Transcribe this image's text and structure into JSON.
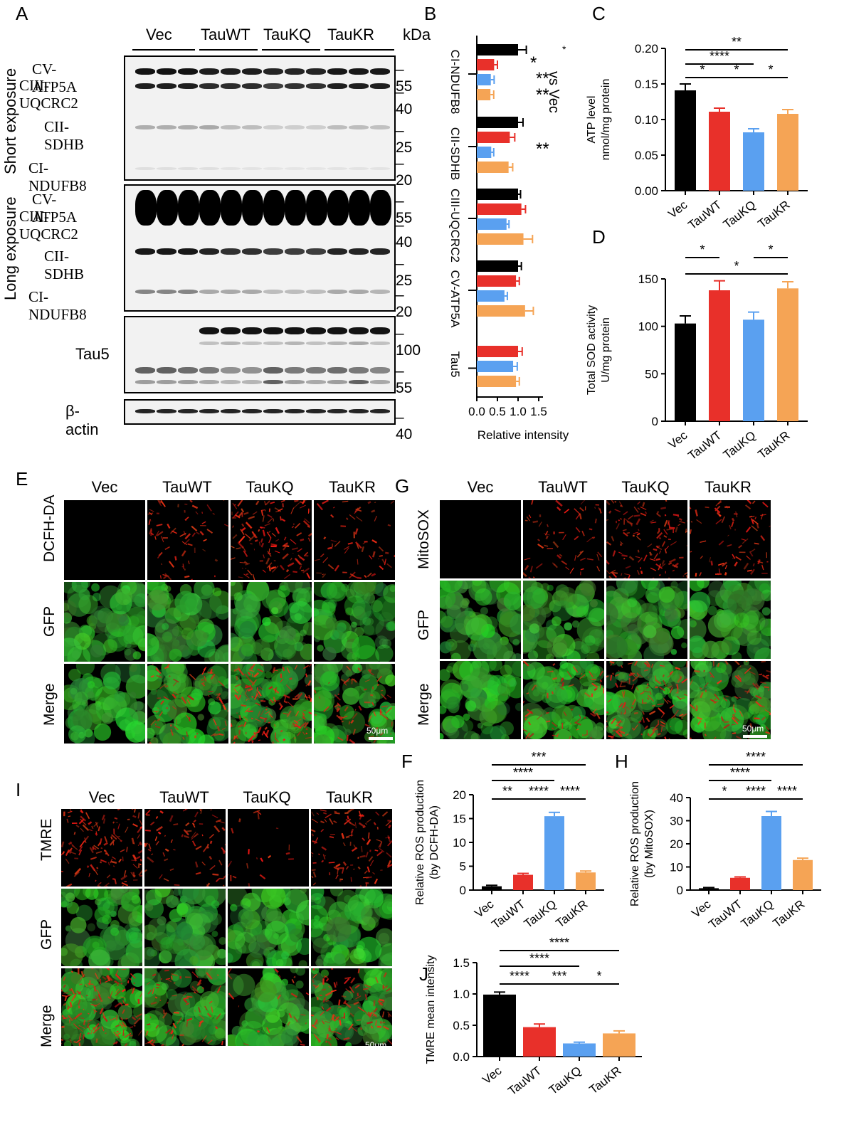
{
  "panel_letters": [
    "A",
    "B",
    "C",
    "D",
    "E",
    "F",
    "G",
    "H",
    "I",
    "J"
  ],
  "groups": [
    "Vec",
    "TauWT",
    "TauKQ",
    "TauKR"
  ],
  "colors": {
    "Vec": "#000000",
    "TauWT": "#e8302a",
    "TauKQ": "#5aa0f0",
    "TauKR": "#f5a455"
  },
  "western": {
    "kda_label": "kDa",
    "short_exposure": "Short exposure",
    "long_exposure": "Long exposure",
    "short_labels": [
      "CV-ATP5A",
      "CIII-UQCRC2",
      "CII-SDHB",
      "CI-NDUFB8"
    ],
    "long_labels": [
      "CV-ATP5A",
      "CIII-UQCRC2",
      "CII-SDHB",
      "CI-NDUFB8"
    ],
    "tau_label": "Tau5",
    "actin_label": "β-actin",
    "mw_short": [
      "55",
      "40",
      "25",
      "20"
    ],
    "mw_long": [
      "55",
      "40",
      "25",
      "20"
    ],
    "mw_tau": [
      "100",
      "55"
    ],
    "mw_actin": [
      "40"
    ]
  },
  "panel_b": {
    "xlabel": "Relative intensity",
    "vs_label": "vs Vec",
    "group_labels": [
      "CI-NDUFB8",
      "CII-SDHB",
      "CIII-UQCRC2",
      "CV-ATP5A",
      "Tau5"
    ],
    "stars": [
      "*",
      "*",
      "**",
      "**",
      "**"
    ]
  },
  "panel_c": {
    "ylabel1": "ATP level",
    "ylabel2": "nmol/mg protein",
    "sig": [
      "**",
      "****",
      "*",
      "*",
      "*"
    ]
  },
  "panel_d": {
    "ylabel1": "Total SOD activity",
    "ylabel2": "U/mg protein",
    "sig": [
      "*",
      "*",
      "*"
    ]
  },
  "panel_f": {
    "ylabel1": "Relative ROS production",
    "ylabel2": "(by DCFH-DA)",
    "sig": [
      "***",
      "****",
      "**",
      "****",
      "****"
    ]
  },
  "panel_h": {
    "ylabel1": "Relative ROS production",
    "ylabel2": "(by MitoSOX)",
    "sig": [
      "****",
      "****",
      "*",
      "****",
      "****"
    ]
  },
  "panel_j": {
    "ylabel1": "TMRE mean intensity",
    "sig": [
      "****",
      "****",
      "****",
      "***",
      "*"
    ]
  },
  "micrographs": {
    "e_rows": [
      "DCFH-DA",
      "GFP",
      "Merge"
    ],
    "g_rows": [
      "MitoSOX",
      "GFP",
      "Merge"
    ],
    "i_rows": [
      "TMRE",
      "GFP",
      "Merge"
    ],
    "scale": "50μm"
  },
  "chart_data": [
    {
      "panel": "B",
      "type": "bar",
      "orientation": "horizontal",
      "xlabel": "Relative intensity",
      "xlim": [
        0,
        1.5
      ],
      "xticks": [
        "0.0",
        "0.5",
        "1.0",
        "1.5"
      ],
      "categories": [
        "CI-NDUFB8",
        "CII-SDHB",
        "CIII-UQCRC2",
        "CV-ATP5A",
        "Tau5"
      ],
      "series": [
        {
          "name": "Vec",
          "values": [
            1.0,
            1.0,
            1.0,
            1.0,
            null
          ],
          "errors": [
            0.2,
            0.12,
            0.06,
            0.08,
            null
          ]
        },
        {
          "name": "TauWT",
          "values": [
            0.42,
            0.8,
            1.08,
            0.95,
            1.0
          ],
          "errors": [
            0.08,
            0.12,
            0.1,
            0.08,
            0.1
          ]
        },
        {
          "name": "TauKQ",
          "values": [
            0.34,
            0.35,
            0.72,
            0.67,
            0.88
          ],
          "errors": [
            0.08,
            0.06,
            0.06,
            0.07,
            0.1
          ]
        },
        {
          "name": "TauKR",
          "values": [
            0.33,
            0.77,
            1.13,
            1.17,
            0.95
          ],
          "errors": [
            0.08,
            0.1,
            0.22,
            0.2,
            0.08
          ]
        }
      ]
    },
    {
      "panel": "C",
      "type": "bar",
      "ylim": [
        0,
        0.2
      ],
      "yticks": [
        "0.00",
        "0.05",
        "0.10",
        "0.15",
        "0.20"
      ],
      "ylabel": "ATP level nmol/mg protein",
      "categories": [
        "Vec",
        "TauWT",
        "TauKQ",
        "TauKR"
      ],
      "values": [
        0.141,
        0.111,
        0.082,
        0.108
      ],
      "errors": [
        0.009,
        0.005,
        0.005,
        0.006
      ]
    },
    {
      "panel": "D",
      "type": "bar",
      "ylim": [
        0,
        150
      ],
      "yticks": [
        "0",
        "50",
        "100",
        "150"
      ],
      "ylabel": "Total SOD activity U/mg protein",
      "categories": [
        "Vec",
        "TauWT",
        "TauKQ",
        "TauKR"
      ],
      "values": [
        103,
        138,
        107,
        140
      ],
      "errors": [
        8,
        10,
        8,
        7
      ]
    },
    {
      "panel": "F",
      "type": "bar",
      "ylim": [
        0,
        20
      ],
      "yticks": [
        "0",
        "5",
        "10",
        "15",
        "20"
      ],
      "ylabel": "Relative ROS production (by DCFH-DA)",
      "categories": [
        "Vec",
        "TauWT",
        "TauKQ",
        "TauKR"
      ],
      "values": [
        0.8,
        3.2,
        15.5,
        3.7
      ],
      "errors": [
        0.2,
        0.3,
        0.8,
        0.3
      ]
    },
    {
      "panel": "H",
      "type": "bar",
      "ylim": [
        0,
        40
      ],
      "yticks": [
        "0",
        "10",
        "20",
        "30",
        "40"
      ],
      "ylabel": "Relative ROS production (by MitoSOX)",
      "categories": [
        "Vec",
        "TauWT",
        "TauKQ",
        "TauKR"
      ],
      "values": [
        0.8,
        5.3,
        32.0,
        13.0
      ],
      "errors": [
        0.3,
        0.4,
        2.0,
        0.8
      ]
    },
    {
      "panel": "J",
      "type": "bar",
      "ylim": [
        0,
        1.5
      ],
      "yticks": [
        "0.0",
        "0.5",
        "1.0",
        "1.5"
      ],
      "ylabel": "TMRE mean intensity",
      "categories": [
        "Vec",
        "TauWT",
        "TauKQ",
        "TauKR"
      ],
      "values": [
        0.99,
        0.47,
        0.21,
        0.37
      ],
      "errors": [
        0.04,
        0.05,
        0.02,
        0.04
      ]
    }
  ]
}
